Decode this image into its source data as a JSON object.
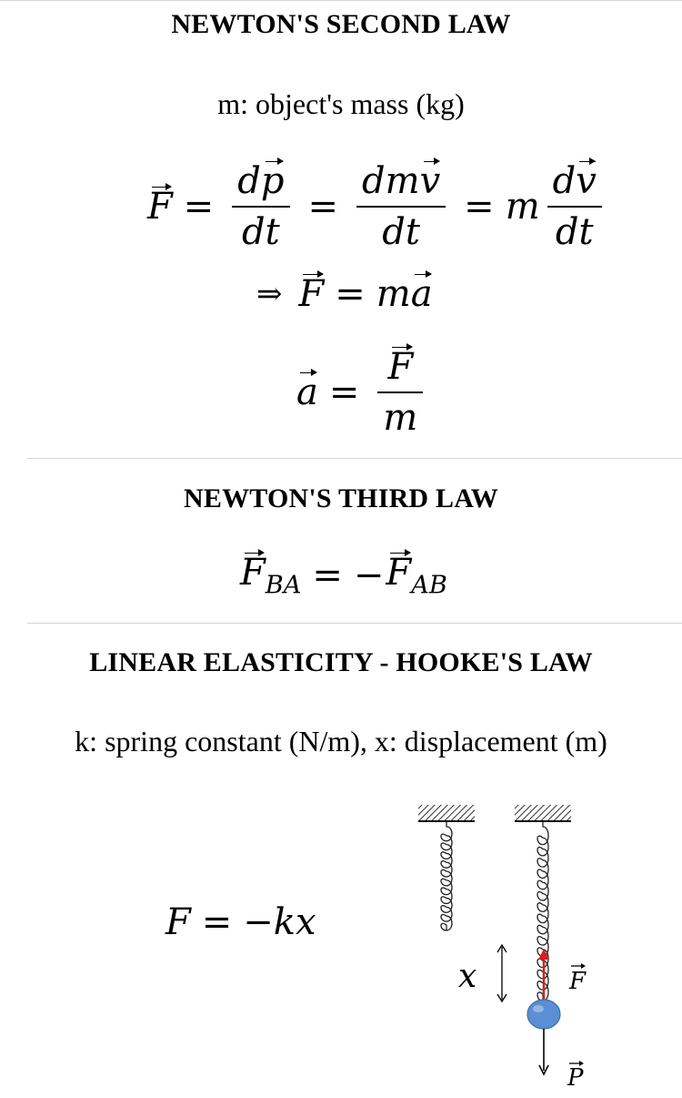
{
  "second_law": {
    "heading": "NEWTON'S SECOND LAW",
    "note": "m: object's mass (kg)",
    "symbols": {
      "F": "F",
      "d": "d",
      "p": "p",
      "t": "t",
      "m": "m",
      "v": "v",
      "a": "a",
      "eq": "=",
      "implies": "⇒"
    }
  },
  "third_law": {
    "heading": "NEWTON'S THIRD LAW",
    "symbols": {
      "F": "F",
      "sub_ba": "BA",
      "sub_ab": "AB",
      "eq": "=",
      "minus": "−"
    }
  },
  "hooke": {
    "heading": "LINEAR ELASTICITY - HOOKE'S LAW",
    "note": "k: spring constant (N/m), x: displacement (m)",
    "formula": {
      "F": "F",
      "eq": "=",
      "rhs": "−kx"
    },
    "diagram": {
      "displacement_label": "x",
      "force_label": "F",
      "weight_label": "P",
      "colors": {
        "force_arrow": "#d81e1e",
        "ball": "#5b8fd4",
        "ball_edge": "#3a6bb0"
      }
    }
  }
}
